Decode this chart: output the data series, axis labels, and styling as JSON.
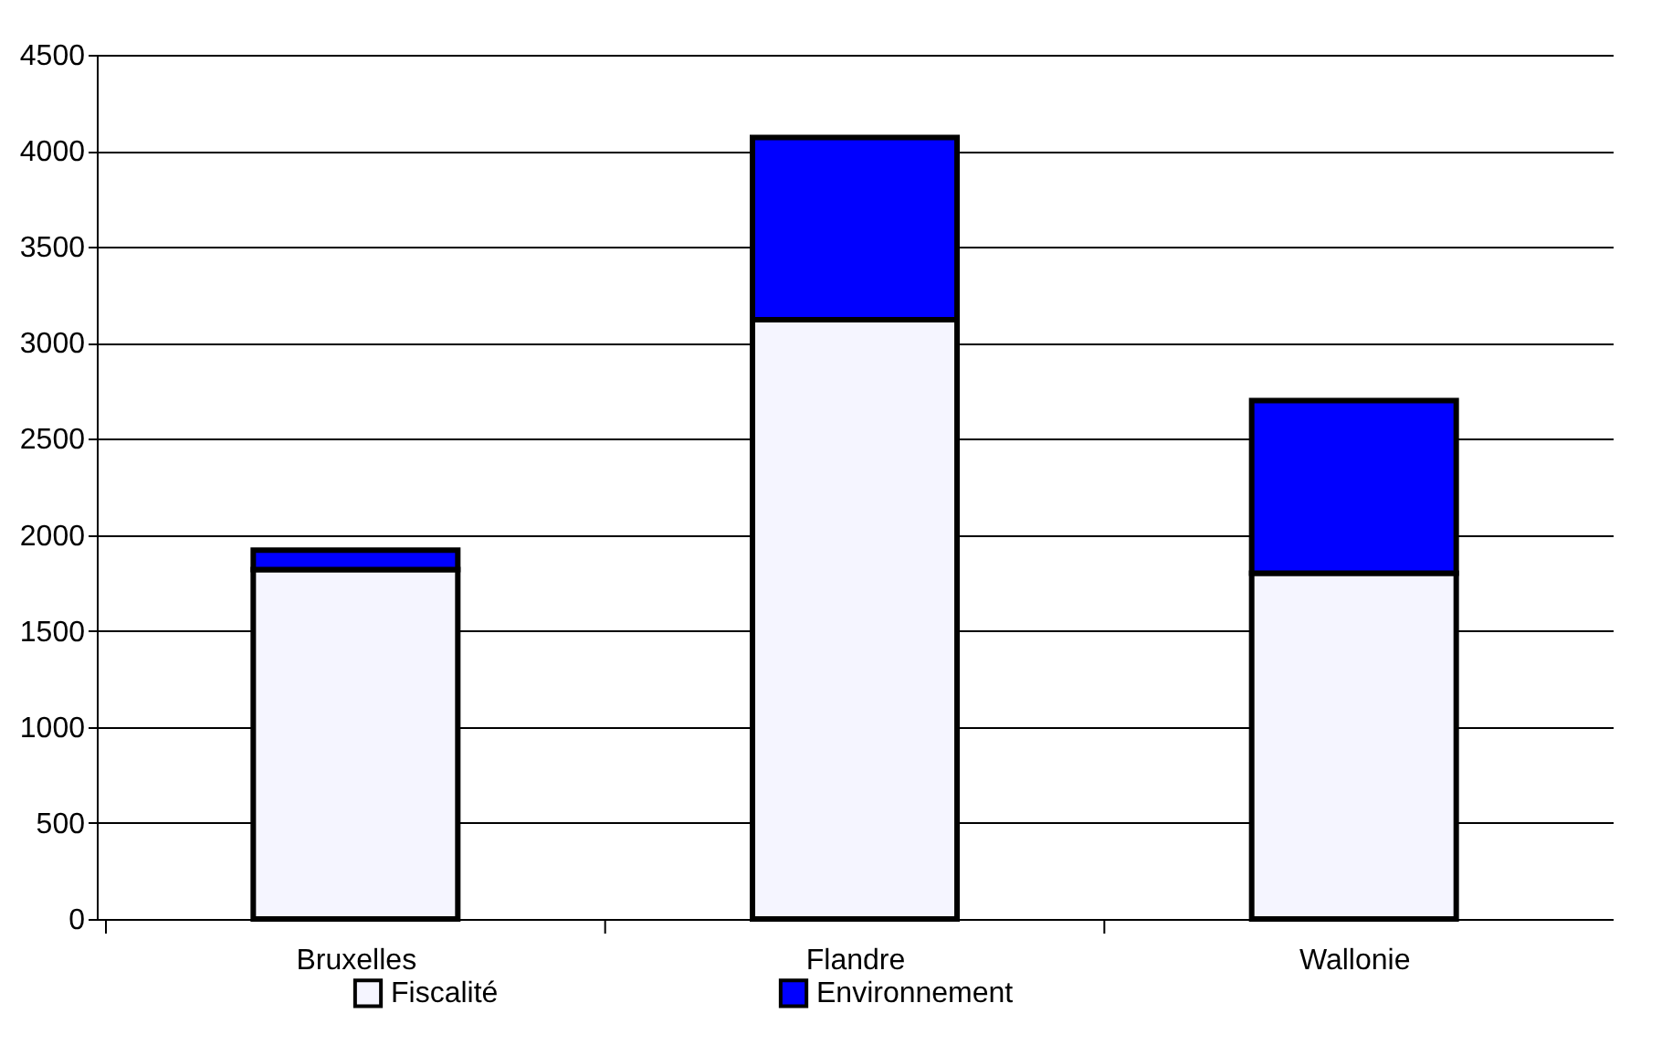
{
  "chart_data": {
    "type": "bar",
    "stacked": true,
    "categories": [
      "Bruxelles",
      "Flandre",
      "Wallonie"
    ],
    "series": [
      {
        "name": "Fiscalité",
        "color": "#f5f5ff",
        "values": [
          1820,
          3120,
          1800
        ]
      },
      {
        "name": "Environnement",
        "color": "#0000ff",
        "values": [
          100,
          950,
          900
        ]
      }
    ],
    "ylim": [
      0,
      4500
    ],
    "yticks": [
      0,
      500,
      1000,
      1500,
      2000,
      2500,
      3000,
      3500,
      4000,
      4500
    ],
    "grid": "y",
    "legend": "bottom"
  }
}
